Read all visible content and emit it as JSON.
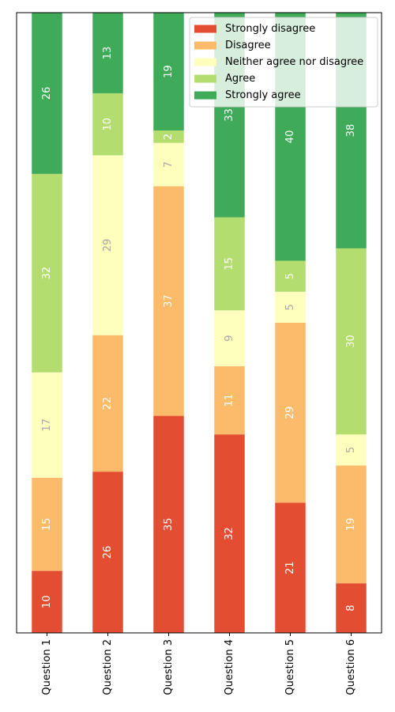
{
  "chart_data": {
    "type": "bar",
    "orientation": "vertical",
    "stacked": true,
    "categories": [
      "Question 1",
      "Question 2",
      "Question 3",
      "Question 4",
      "Question 5",
      "Question 6"
    ],
    "series": [
      {
        "name": "Strongly disagree",
        "color": "#e34e33",
        "label_color": "#ffffff",
        "values": [
          10,
          26,
          35,
          32,
          21,
          8
        ]
      },
      {
        "name": "Disagree",
        "color": "#fcba6b",
        "label_color": "#ffffff",
        "values": [
          15,
          22,
          37,
          11,
          29,
          19
        ]
      },
      {
        "name": "Neither agree nor disagree",
        "color": "#fefebd",
        "label_color": "#a8a8a8",
        "values": [
          17,
          29,
          7,
          9,
          5,
          5
        ]
      },
      {
        "name": "Agree",
        "color": "#b3de6f",
        "label_color": "#ffffff",
        "values": [
          32,
          10,
          2,
          15,
          5,
          30
        ]
      },
      {
        "name": "Strongly agree",
        "color": "#3faa58",
        "label_color": "#ffffff",
        "values": [
          26,
          13,
          19,
          33,
          40,
          38
        ]
      }
    ],
    "ylim": [
      0,
      100
    ],
    "y_axis_visible": false,
    "x_tick_rotation": 90,
    "legend": {
      "placement": "top-right"
    },
    "grid": false,
    "title": "",
    "xlabel": "",
    "ylabel": ""
  }
}
